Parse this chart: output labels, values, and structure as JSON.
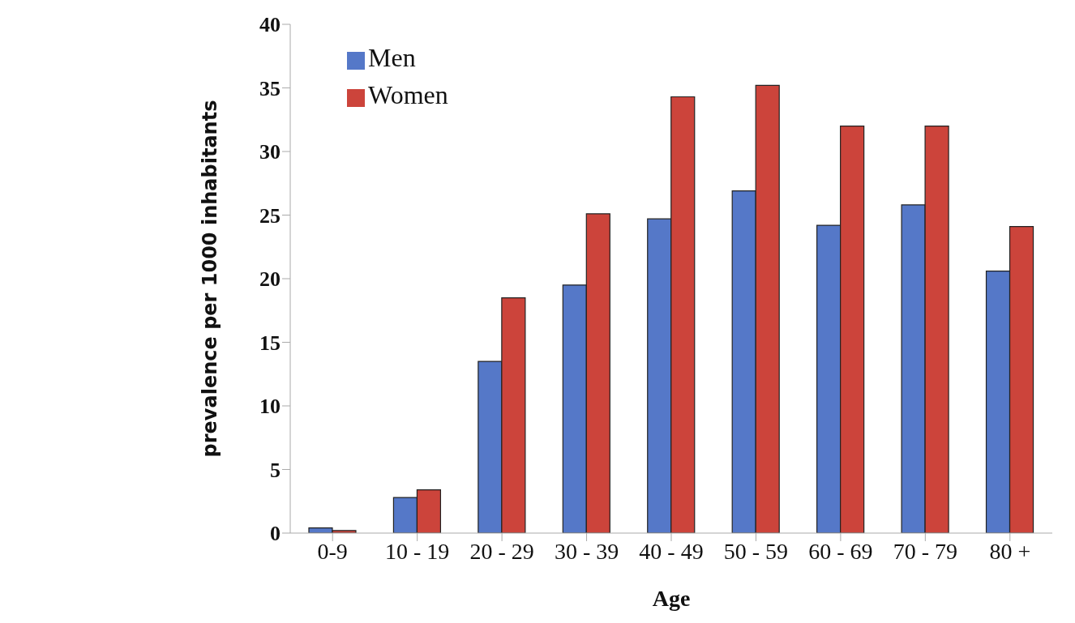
{
  "chart_data": {
    "type": "bar",
    "xlabel": "Age",
    "ylabel": "prevalence per  1000 inhabitants",
    "categories": [
      "0-9",
      "10 - 19",
      "20 - 29",
      "30 - 39",
      "40 - 49",
      "50 - 59",
      "60 - 69",
      "70 - 79",
      "80 +"
    ],
    "series": [
      {
        "name": "Men",
        "color": "#5578c8",
        "values": [
          0.4,
          2.8,
          13.5,
          19.5,
          24.7,
          26.9,
          24.2,
          25.8,
          20.6
        ]
      },
      {
        "name": "Women",
        "color": "#cc443b",
        "values": [
          0.2,
          3.4,
          18.5,
          25.1,
          34.3,
          35.2,
          32.0,
          32.0,
          24.1
        ]
      }
    ],
    "ylim": [
      0,
      40
    ],
    "yticks": [
      0,
      5,
      10,
      15,
      20,
      25,
      30,
      35,
      40
    ],
    "grid": false,
    "legend": "top left"
  }
}
